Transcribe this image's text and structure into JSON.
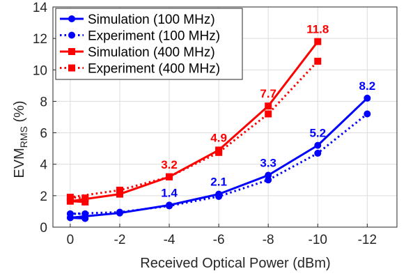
{
  "chart_data": {
    "type": "line",
    "xlabel": "Received Optical Power (dBm)",
    "ylabel_main": "EVM",
    "ylabel_sub": "RMS",
    "ylabel_unit": " (%)",
    "xlim": [
      0.7,
      -13.2
    ],
    "ylim": [
      0,
      14
    ],
    "x_ticks": [
      0,
      -2,
      -4,
      -6,
      -8,
      -10,
      -12
    ],
    "x_tick_labels": [
      "0",
      "-2",
      "-4",
      "-6",
      "-8",
      "-10",
      "-12"
    ],
    "y_ticks": [
      0,
      2,
      4,
      6,
      8,
      10,
      12,
      14
    ],
    "y_tick_labels": [
      "0",
      "2",
      "4",
      "6",
      "8",
      "10",
      "12",
      "14"
    ],
    "grid": true,
    "legend_position": "top-left",
    "series": [
      {
        "name": "Simulation (100 MHz)",
        "color": "#0000ff",
        "dash": "solid",
        "marker": "circle",
        "points": [
          [
            -0.6,
            0.55
          ],
          [
            0,
            0.6
          ],
          [
            -2,
            0.9
          ],
          [
            -4,
            1.4
          ],
          [
            -6,
            2.1
          ],
          [
            -8,
            3.3
          ],
          [
            -10,
            5.2
          ],
          [
            -12,
            8.2
          ]
        ]
      },
      {
        "name": "Experiment (100 MHz)",
        "color": "#0000ff",
        "dash": "dotted",
        "marker": "circle",
        "points": [
          [
            -0.6,
            0.85
          ],
          [
            0,
            0.85
          ],
          [
            -2,
            0.95
          ],
          [
            -4,
            1.35
          ],
          [
            -6,
            1.95
          ],
          [
            -8,
            3.0
          ],
          [
            -10,
            4.7
          ],
          [
            -12,
            7.2
          ]
        ]
      },
      {
        "name": "Simulation (400 MHz)",
        "color": "#ff0000",
        "dash": "solid",
        "marker": "square",
        "points": [
          [
            -0.6,
            1.6
          ],
          [
            0,
            1.65
          ],
          [
            -2,
            2.1
          ],
          [
            -4,
            3.2
          ],
          [
            -6,
            4.9
          ],
          [
            -8,
            7.7
          ],
          [
            -10,
            11.8
          ]
        ]
      },
      {
        "name": "Experiment (400 MHz)",
        "color": "#ff0000",
        "dash": "dotted",
        "marker": "square",
        "points": [
          [
            -0.6,
            1.85
          ],
          [
            0,
            1.9
          ],
          [
            -2,
            2.35
          ],
          [
            -4,
            3.2
          ],
          [
            -6,
            4.75
          ],
          [
            -8,
            7.2
          ],
          [
            -10,
            10.55
          ]
        ]
      }
    ],
    "annotations": [
      {
        "x": -4,
        "y": 1.4,
        "text": "1.4",
        "color": "#0000ff"
      },
      {
        "x": -6,
        "y": 2.1,
        "text": "2.1",
        "color": "#0000ff"
      },
      {
        "x": -8,
        "y": 3.3,
        "text": "3.3",
        "color": "#0000ff"
      },
      {
        "x": -10,
        "y": 5.2,
        "text": "5.2",
        "color": "#0000ff"
      },
      {
        "x": -12,
        "y": 8.2,
        "text": "8.2",
        "color": "#0000ff"
      },
      {
        "x": -4,
        "y": 3.2,
        "text": "3.2",
        "color": "#ff0000"
      },
      {
        "x": -6,
        "y": 4.9,
        "text": "4.9",
        "color": "#ff0000"
      },
      {
        "x": -8,
        "y": 7.7,
        "text": "7.7",
        "color": "#ff0000"
      },
      {
        "x": -10,
        "y": 11.8,
        "text": "11.8",
        "color": "#ff0000"
      }
    ]
  }
}
